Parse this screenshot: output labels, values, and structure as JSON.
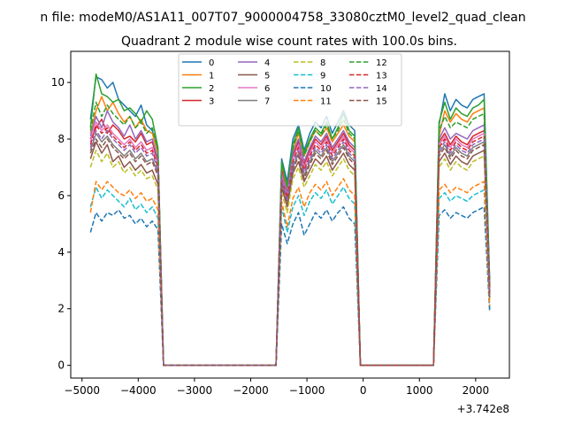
{
  "figure": {
    "suptitle": "n file: modeM0/AS1A11_007T07_9000004758_33080cztM0_level2_quad_clean",
    "title": "Quadrant 2 module wise count rates with 100.0s bins.",
    "offset_label": "+3.742e8"
  },
  "chart_data": {
    "type": "line",
    "title": "Quadrant 2 module wise count rates with 100.0s bins.",
    "xlabel": "",
    "ylabel": "",
    "x_offset": 374200000,
    "xlim": [
      -5200,
      2600
    ],
    "ylim": [
      -0.45,
      11.1
    ],
    "xticks": [
      -5000,
      -4000,
      -3000,
      -2000,
      -1000,
      0,
      1000,
      2000
    ],
    "xtick_labels": [
      "−5000",
      "−4000",
      "−3000",
      "−2000",
      "−1000",
      "0",
      "1000",
      "2000"
    ],
    "yticks": [
      0,
      2,
      4,
      6,
      8,
      10
    ],
    "ytick_labels": [
      "0",
      "2",
      "4",
      "6",
      "8",
      "10"
    ],
    "grid": false,
    "legend": {
      "placement": "top-center",
      "columns": 4
    },
    "segments": [
      {
        "x_start": -4850,
        "x_end": -3650,
        "step": 100
      },
      {
        "x_start": -1450,
        "x_end": -150,
        "step": 100
      },
      {
        "x_start": 1350,
        "x_end": 2250,
        "step": 100
      }
    ],
    "gap_x": [
      -3550,
      -1550,
      -50,
      50,
      1250
    ],
    "series": [
      {
        "name": "0",
        "color": "#1f77b4",
        "dash": "solid",
        "seg1": [
          8.7,
          10.2,
          10.1,
          9.8,
          10.0,
          9.4,
          9.2,
          9.0,
          8.8,
          9.2,
          8.5,
          8.3,
          7.6
        ],
        "seg2": [
          7.3,
          6.5,
          8.0,
          8.5,
          7.6,
          8.2,
          8.6,
          8.4,
          8.8,
          8.2,
          8.6,
          9.0,
          8.5,
          8.3
        ],
        "seg3": [
          8.5,
          9.6,
          9.0,
          9.4,
          9.2,
          9.1,
          9.4,
          9.5,
          9.6,
          3.0
        ]
      },
      {
        "name": "1",
        "color": "#ff7f0e",
        "dash": "solid",
        "seg1": [
          8.2,
          9.0,
          9.5,
          9.0,
          9.3,
          8.9,
          8.6,
          8.8,
          8.4,
          8.7,
          8.3,
          8.2,
          7.5
        ],
        "seg2": [
          7.0,
          6.2,
          7.6,
          8.2,
          7.4,
          7.9,
          8.3,
          8.1,
          8.4,
          7.9,
          8.2,
          8.5,
          8.1,
          7.9
        ],
        "seg3": [
          8.1,
          9.0,
          8.6,
          8.9,
          8.7,
          8.6,
          8.9,
          9.0,
          9.1,
          2.8
        ]
      },
      {
        "name": "2",
        "color": "#2ca02c",
        "dash": "solid",
        "seg1": [
          8.4,
          10.3,
          9.6,
          9.5,
          9.3,
          9.4,
          9.0,
          9.1,
          8.9,
          8.6,
          9.0,
          8.7,
          7.7
        ],
        "seg2": [
          7.2,
          6.3,
          7.8,
          8.4,
          7.5,
          8.0,
          8.4,
          8.2,
          8.6,
          8.0,
          8.4,
          8.9,
          8.3,
          8.1
        ],
        "seg3": [
          8.6,
          9.3,
          8.7,
          9.1,
          8.9,
          8.8,
          9.1,
          9.2,
          9.4,
          2.9
        ]
      },
      {
        "name": "3",
        "color": "#d62728",
        "dash": "solid",
        "seg1": [
          8.0,
          8.4,
          8.7,
          8.2,
          8.5,
          8.3,
          8.0,
          8.1,
          7.9,
          8.2,
          7.8,
          7.9,
          7.2
        ],
        "seg2": [
          6.9,
          6.0,
          7.4,
          7.9,
          7.1,
          7.6,
          8.0,
          7.8,
          8.1,
          7.6,
          7.9,
          8.2,
          7.8,
          7.6
        ],
        "seg3": [
          7.9,
          8.2,
          7.8,
          8.1,
          7.9,
          7.8,
          8.1,
          8.2,
          8.3,
          2.6
        ]
      },
      {
        "name": "4",
        "color": "#9467bd",
        "dash": "solid",
        "seg1": [
          8.1,
          8.8,
          8.4,
          9.0,
          8.6,
          8.4,
          8.1,
          8.5,
          8.0,
          8.3,
          7.9,
          8.0,
          7.3
        ],
        "seg2": [
          6.8,
          6.1,
          7.5,
          8.0,
          7.2,
          7.7,
          8.1,
          7.9,
          8.2,
          7.7,
          8.0,
          8.3,
          7.9,
          7.7
        ],
        "seg3": [
          8.0,
          8.4,
          8.0,
          8.2,
          8.1,
          8.0,
          8.3,
          8.4,
          8.5,
          2.7
        ]
      },
      {
        "name": "5",
        "color": "#8c564b",
        "dash": "solid",
        "seg1": [
          7.3,
          7.9,
          7.5,
          7.8,
          7.2,
          7.4,
          7.0,
          7.2,
          6.9,
          7.1,
          6.8,
          6.9,
          6.4
        ],
        "seg2": [
          6.3,
          5.6,
          6.8,
          7.2,
          6.5,
          6.9,
          7.3,
          7.1,
          7.4,
          6.9,
          7.2,
          7.5,
          7.1,
          6.9
        ],
        "seg3": [
          7.2,
          7.5,
          7.1,
          7.4,
          7.2,
          7.1,
          7.4,
          7.5,
          7.6,
          2.4
        ]
      },
      {
        "name": "6",
        "color": "#e377c2",
        "dash": "solid",
        "seg1": [
          7.9,
          8.6,
          8.3,
          8.5,
          8.2,
          8.0,
          7.8,
          8.0,
          7.7,
          7.9,
          7.6,
          7.7,
          7.1
        ],
        "seg2": [
          6.7,
          5.9,
          7.3,
          7.8,
          7.0,
          7.5,
          7.9,
          7.7,
          8.0,
          7.5,
          7.8,
          8.1,
          7.7,
          7.5
        ],
        "seg3": [
          7.8,
          8.1,
          7.7,
          8.0,
          7.8,
          7.7,
          8.0,
          8.1,
          8.2,
          2.6
        ]
      },
      {
        "name": "7",
        "color": "#7f7f7f",
        "dash": "solid",
        "seg1": [
          7.6,
          8.2,
          7.9,
          8.1,
          7.8,
          7.6,
          7.4,
          7.6,
          7.3,
          7.5,
          7.2,
          7.3,
          6.8
        ],
        "seg2": [
          6.5,
          5.8,
          7.0,
          7.5,
          6.7,
          7.2,
          7.6,
          7.4,
          7.7,
          7.2,
          7.5,
          7.8,
          7.4,
          7.2
        ],
        "seg3": [
          7.5,
          7.8,
          7.4,
          7.7,
          7.5,
          7.4,
          7.7,
          7.8,
          7.9,
          2.5
        ]
      },
      {
        "name": "8",
        "color": "#bcbd22",
        "dash": "dashed",
        "seg1": [
          7.0,
          7.6,
          7.2,
          7.5,
          7.0,
          7.2,
          6.8,
          7.0,
          6.7,
          6.9,
          6.6,
          6.7,
          6.2
        ],
        "seg2": [
          6.1,
          5.4,
          6.6,
          7.0,
          6.3,
          6.7,
          7.1,
          6.9,
          7.2,
          6.7,
          7.0,
          7.3,
          6.9,
          6.7
        ],
        "seg3": [
          7.0,
          7.3,
          6.9,
          7.2,
          7.0,
          6.9,
          7.2,
          7.3,
          7.4,
          2.3
        ]
      },
      {
        "name": "9",
        "color": "#17becf",
        "dash": "dashed",
        "seg1": [
          5.6,
          6.3,
          5.9,
          6.2,
          6.0,
          5.8,
          5.6,
          5.9,
          5.5,
          5.7,
          5.4,
          5.6,
          5.2
        ],
        "seg2": [
          5.6,
          4.7,
          5.6,
          6.0,
          5.3,
          5.8,
          6.1,
          5.9,
          6.2,
          5.7,
          6.0,
          6.3,
          5.9,
          5.7
        ],
        "seg3": [
          5.9,
          6.1,
          5.8,
          6.0,
          5.9,
          5.8,
          6.0,
          6.1,
          6.2,
          2.0
        ]
      },
      {
        "name": "10",
        "color": "#1f77b4",
        "dash": "dashed",
        "seg1": [
          4.7,
          5.4,
          5.1,
          5.4,
          5.3,
          5.5,
          5.2,
          5.3,
          5.0,
          5.2,
          4.9,
          5.1,
          4.8
        ],
        "seg2": [
          5.0,
          4.3,
          5.0,
          5.4,
          4.6,
          5.0,
          5.4,
          5.2,
          5.5,
          5.1,
          5.4,
          5.6,
          5.2,
          5.0
        ],
        "seg3": [
          5.3,
          5.5,
          5.2,
          5.4,
          5.3,
          5.2,
          5.4,
          5.5,
          5.6,
          1.9
        ]
      },
      {
        "name": "11",
        "color": "#ff7f0e",
        "dash": "dashed",
        "seg1": [
          5.4,
          6.5,
          6.2,
          6.5,
          6.3,
          6.1,
          6.0,
          6.2,
          5.9,
          6.1,
          5.8,
          5.9,
          5.5
        ],
        "seg2": [
          5.8,
          4.9,
          5.9,
          6.3,
          5.6,
          6.1,
          6.4,
          6.2,
          6.5,
          6.0,
          6.3,
          6.6,
          6.2,
          6.0
        ],
        "seg3": [
          6.2,
          6.4,
          6.1,
          6.3,
          6.2,
          6.1,
          6.3,
          6.4,
          6.5,
          2.1
        ]
      },
      {
        "name": "12",
        "color": "#2ca02c",
        "dash": "dashed",
        "seg1": [
          8.3,
          9.3,
          8.8,
          9.2,
          8.9,
          8.7,
          8.5,
          8.8,
          8.4,
          8.6,
          8.2,
          8.4,
          7.6
        ],
        "seg2": [
          7.1,
          6.4,
          7.7,
          8.3,
          7.4,
          7.9,
          8.3,
          8.1,
          8.5,
          8.0,
          8.3,
          8.7,
          8.2,
          8.0
        ],
        "seg3": [
          8.3,
          8.8,
          8.4,
          8.6,
          8.5,
          8.4,
          8.7,
          8.8,
          8.9,
          2.8
        ]
      },
      {
        "name": "13",
        "color": "#d62728",
        "dash": "dashed",
        "seg1": [
          7.8,
          8.5,
          8.2,
          8.4,
          8.1,
          7.9,
          7.7,
          7.9,
          7.6,
          7.8,
          7.5,
          7.6,
          7.0
        ],
        "seg2": [
          6.6,
          5.9,
          7.2,
          7.7,
          6.9,
          7.4,
          7.8,
          7.6,
          7.9,
          7.4,
          7.7,
          8.0,
          7.6,
          7.4
        ],
        "seg3": [
          7.7,
          8.0,
          7.6,
          7.9,
          7.7,
          7.6,
          7.9,
          8.0,
          8.1,
          2.6
        ]
      },
      {
        "name": "14",
        "color": "#9467bd",
        "dash": "dashed",
        "seg1": [
          7.7,
          8.3,
          8.0,
          8.3,
          8.0,
          7.8,
          7.6,
          7.8,
          7.5,
          7.7,
          7.4,
          7.5,
          6.9
        ],
        "seg2": [
          6.6,
          5.8,
          7.1,
          7.6,
          6.8,
          7.3,
          7.7,
          7.5,
          7.8,
          7.3,
          7.6,
          7.9,
          7.5,
          7.3
        ],
        "seg3": [
          7.6,
          7.9,
          7.5,
          7.8,
          7.6,
          7.5,
          7.8,
          7.9,
          8.0,
          2.5
        ]
      },
      {
        "name": "15",
        "color": "#8c564b",
        "dash": "dashed",
        "seg1": [
          7.5,
          8.0,
          7.7,
          8.0,
          7.7,
          7.5,
          7.3,
          7.5,
          7.2,
          7.4,
          7.1,
          7.2,
          6.7
        ],
        "seg2": [
          6.4,
          5.7,
          6.9,
          7.4,
          6.6,
          7.1,
          7.5,
          7.3,
          7.6,
          7.1,
          7.4,
          7.7,
          7.3,
          7.1
        ],
        "seg3": [
          7.4,
          7.7,
          7.3,
          7.6,
          7.4,
          7.3,
          7.6,
          7.7,
          7.8,
          2.4
        ]
      }
    ]
  }
}
